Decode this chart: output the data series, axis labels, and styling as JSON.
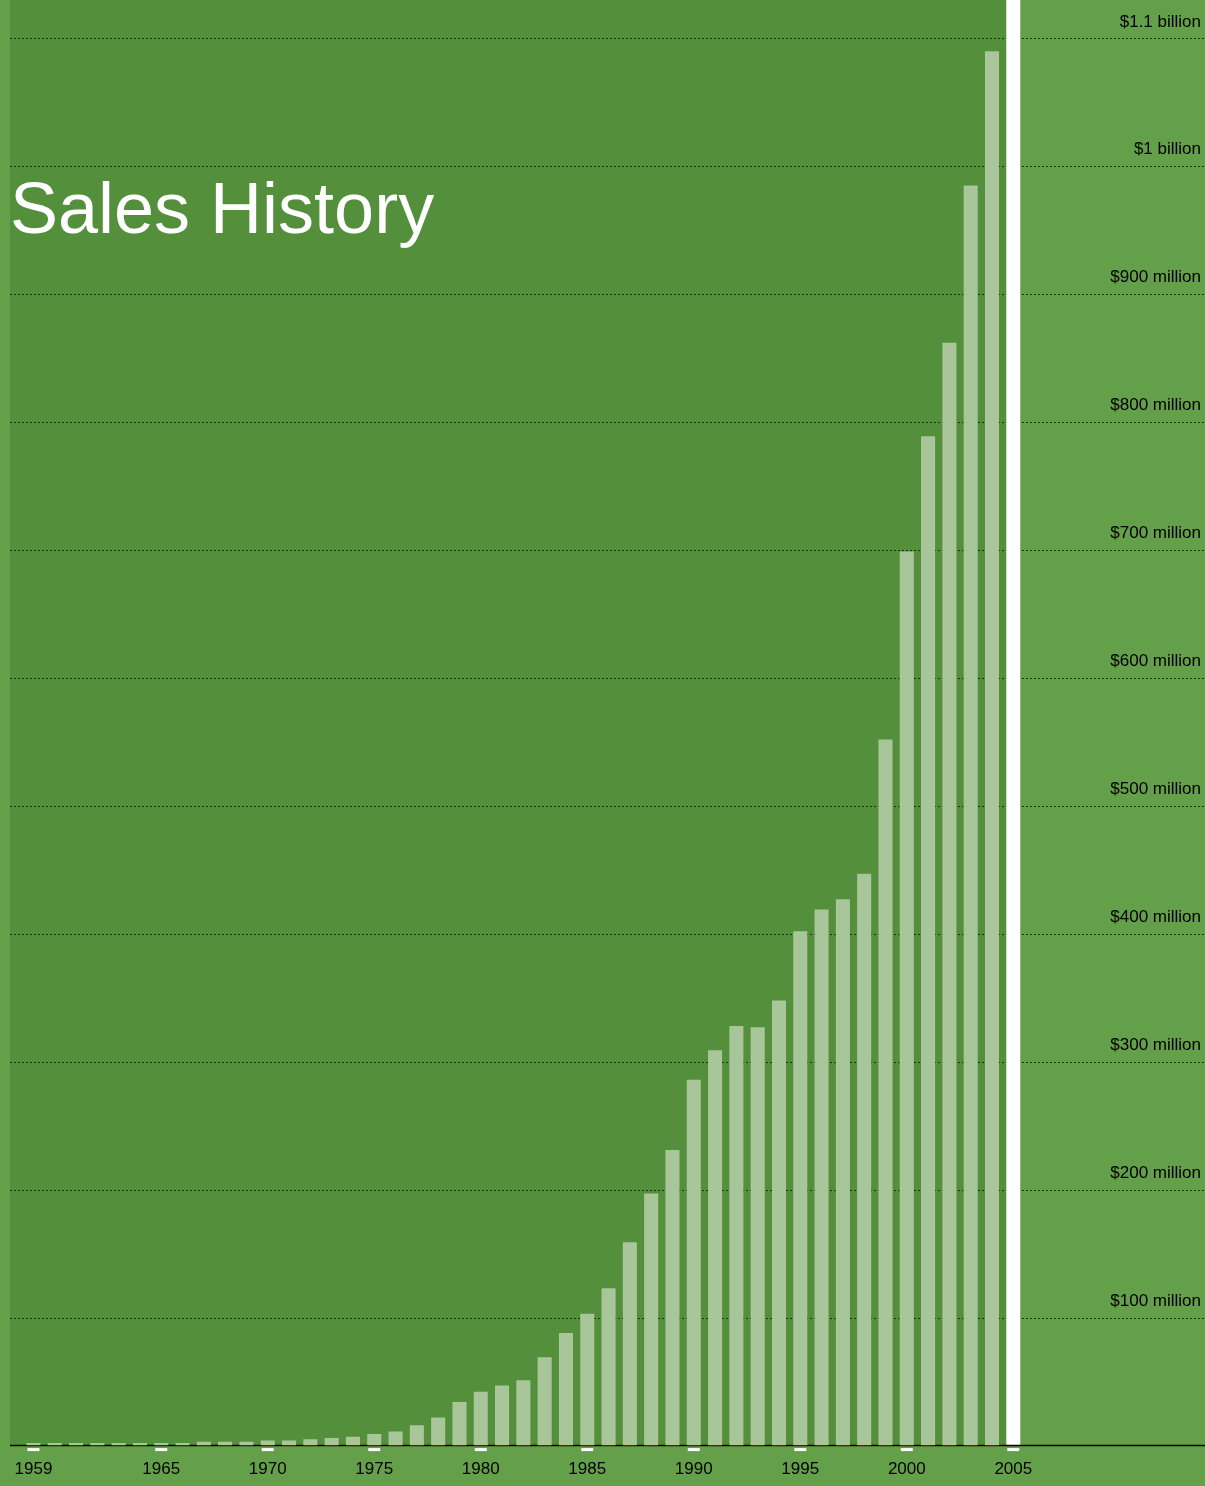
{
  "chart_data": {
    "type": "bar",
    "title": "Sales History",
    "x": [
      1959,
      1960,
      1961,
      1962,
      1963,
      1964,
      1965,
      1966,
      1967,
      1968,
      1969,
      1970,
      1971,
      1972,
      1973,
      1974,
      1975,
      1976,
      1977,
      1978,
      1979,
      1980,
      1981,
      1982,
      1983,
      1984,
      1985,
      1986,
      1987,
      1988,
      1989,
      1990,
      1991,
      1992,
      1993,
      1994,
      1995,
      1996,
      1997,
      1998,
      1999,
      2000,
      2001,
      2002,
      2003,
      2004
    ],
    "values": [
      2000000,
      2000000,
      2000000,
      2000000,
      2000000,
      2000000,
      2000000,
      2000000,
      3000000,
      3000000,
      3000000,
      4000000,
      4000000,
      5000000,
      6000000,
      7000000,
      9000000,
      11000000,
      16000000,
      22000000,
      34000000,
      42000000,
      47000000,
      51000000,
      69000000,
      88000000,
      103000000,
      123000000,
      159000000,
      197000000,
      231000000,
      286000000,
      309000000,
      328000000,
      327000000,
      348000000,
      402000000,
      419000000,
      427000000,
      447000000,
      552000000,
      699000000,
      789000000,
      862000000,
      985000000,
      1090000000
    ],
    "color": "#a9c69a",
    "xlim": [
      1957.9,
      2014
    ],
    "xticks": [
      1959,
      1965,
      1970,
      1975,
      1980,
      1985,
      1990,
      1995,
      2000,
      2005
    ],
    "ylim": [
      0,
      1130000000
    ],
    "yticks": [
      {
        "value": 100000000,
        "label": "$100 million"
      },
      {
        "value": 200000000,
        "label": "$200 million"
      },
      {
        "value": 300000000,
        "label": "$300 million"
      },
      {
        "value": 400000000,
        "label": "$400 million"
      },
      {
        "value": 500000000,
        "label": "$500 million"
      },
      {
        "value": 600000000,
        "label": "$600 million"
      },
      {
        "value": 700000000,
        "label": "$700 million"
      },
      {
        "value": 800000000,
        "label": "$800 million"
      },
      {
        "value": 900000000,
        "label": "$900 million"
      },
      {
        "value": 1000000000,
        "label": "$1 billion"
      },
      {
        "value": 1100000000,
        "label": "$1.1 billion"
      }
    ],
    "grid": "y",
    "ref_lines": [
      {
        "axis": "x",
        "value": 2005,
        "color": "#ffffff"
      }
    ],
    "bands": [
      {
        "axis": "x",
        "from": 2005,
        "to": 2014,
        "color": "#64a04a"
      }
    ]
  }
}
